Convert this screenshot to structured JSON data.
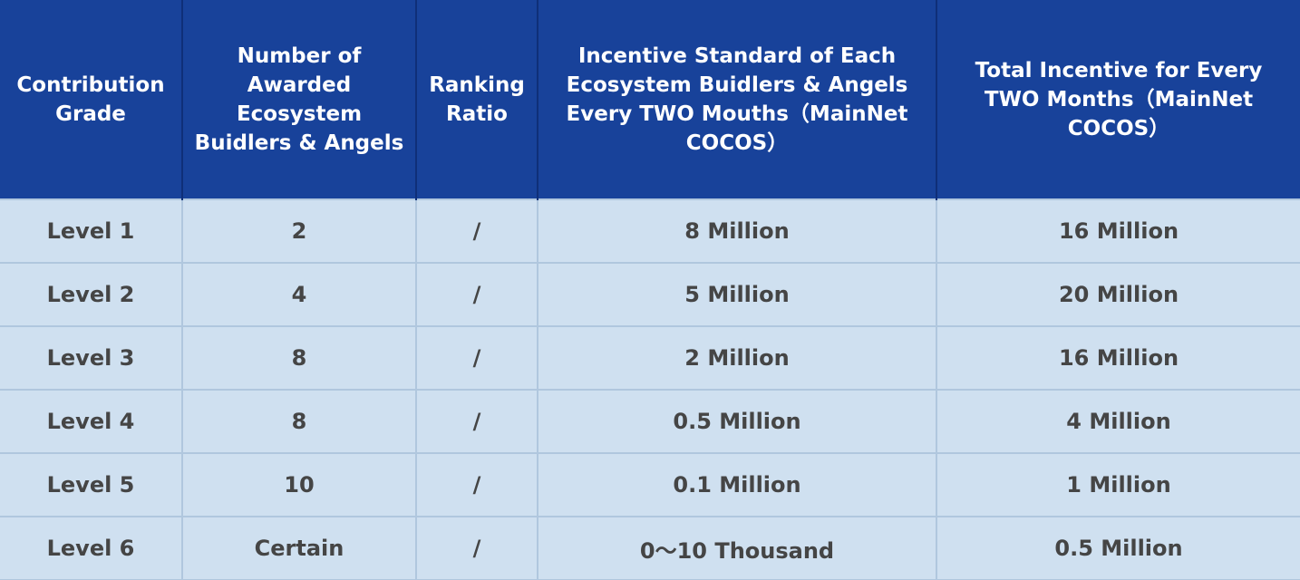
{
  "table": {
    "headers": [
      "Contribution Grade",
      "Number of Awarded Ecosystem Buidlers & Angels",
      "Ranking Ratio",
      "Incentive Standard of Each Ecosystem Buidlers & Angels Every TWO Mouths（MainNet COCOS）",
      "Total Incentive for Every TWO Months（MainNet COCOS）"
    ],
    "rows": [
      [
        "Level 1",
        "2",
        "/",
        "8 Million",
        "16 Million"
      ],
      [
        "Level 2",
        "4",
        "/",
        "5 Million",
        "20 Million"
      ],
      [
        "Level 3",
        "8",
        "/",
        "2 Million",
        "16 Million"
      ],
      [
        "Level 4",
        "8",
        "/",
        "0.5 Million",
        "4 Million"
      ],
      [
        "Level 5",
        "10",
        "/",
        "0.1 Million",
        "1 Million"
      ],
      [
        "Level 6",
        "Certain",
        "/",
        "0～10 Thousand",
        "0.5 Million"
      ]
    ]
  },
  "colors": {
    "header_bg": "#18429a",
    "header_text": "#ffffff",
    "body_bg": "#cfe0f0",
    "body_text": "#454545",
    "grid": "#b0c7de"
  }
}
